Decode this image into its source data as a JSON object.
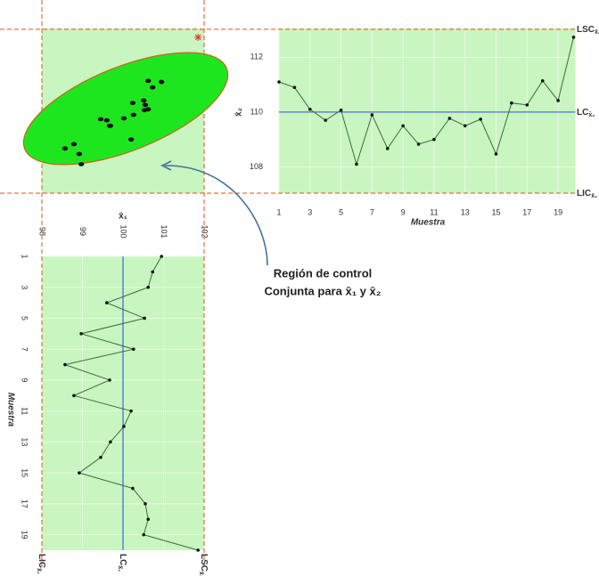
{
  "chart_data": [
    {
      "type": "line",
      "orientation": "vertical",
      "xlabel": "Muestra",
      "ylabel": "x̄₂",
      "x": [
        1,
        2,
        3,
        4,
        5,
        6,
        7,
        8,
        9,
        10,
        11,
        12,
        13,
        14,
        15,
        16,
        17,
        18,
        19,
        20
      ],
      "values": [
        111.1,
        110.9,
        110.1,
        109.7,
        110.07,
        108.1,
        109.9,
        108.67,
        109.5,
        108.83,
        109.0,
        109.77,
        109.5,
        109.74,
        108.47,
        110.33,
        110.26,
        111.14,
        110.42,
        112.73
      ],
      "xlim": [
        1,
        20
      ],
      "xticks": [
        1,
        3,
        5,
        7,
        9,
        11,
        13,
        15,
        17,
        19
      ],
      "ylim": [
        107.04,
        113.05
      ],
      "yticks": [
        108,
        110,
        112
      ],
      "color": "#3d6b3d",
      "grid": true,
      "limits": [
        {
          "label": "LSC",
          "sub": "x̄₂",
          "value": 113.02,
          "color": "#e8302a"
        },
        {
          "label": "LC",
          "sub": "x̄₂",
          "value": 110.0,
          "color": "#4a6fd8"
        },
        {
          "label": "LIC",
          "sub": "x̄₂",
          "value": 107.04,
          "color": "#e8302a"
        }
      ]
    },
    {
      "type": "line",
      "orientation": "horizontal",
      "xlabel": "Muestra",
      "ylabel": "x̄₁",
      "x": [
        1,
        2,
        3,
        4,
        5,
        6,
        7,
        8,
        9,
        10,
        11,
        12,
        13,
        14,
        15,
        16,
        17,
        18,
        19,
        20
      ],
      "values": [
        100.95,
        100.73,
        100.62,
        99.6,
        100.53,
        98.97,
        100.26,
        98.57,
        99.67,
        98.79,
        100.2,
        100.02,
        99.69,
        99.45,
        98.92,
        100.24,
        100.55,
        100.62,
        100.51,
        101.85
      ],
      "xlim": [
        1,
        20
      ],
      "xticks": [
        1,
        3,
        5,
        7,
        9,
        11,
        13,
        15,
        17,
        19
      ],
      "ylim": [
        98,
        102
      ],
      "yticks": [
        98,
        99,
        100,
        101,
        102
      ],
      "color": "#3d6b3d",
      "grid": true,
      "limits": [
        {
          "label": "LIC",
          "sub": "x̄₁",
          "value": 98,
          "color": "#e8302a"
        },
        {
          "label": "LC",
          "sub": "x̄₁",
          "value": 100.0,
          "color": "#4a6fd8"
        },
        {
          "label": "LSC",
          "sub": "x̄₁",
          "value": 102,
          "color": "#e8302a"
        }
      ]
    }
  ],
  "scatter": {
    "color": "#111111",
    "outlier_color": "#e8302a",
    "outliers": [
      19
    ],
    "region_color": "#1ee61e"
  },
  "annotation": [
    "Región de control",
    "Conjunta para x̄₁ y x̄₂"
  ]
}
